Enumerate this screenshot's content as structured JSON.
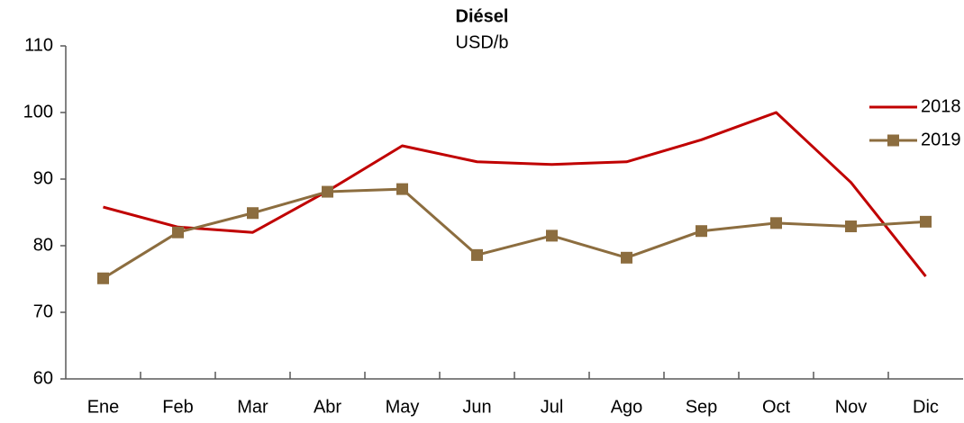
{
  "chart_data": {
    "type": "line",
    "title": "Diésel",
    "subtitle": "USD/b",
    "categories": [
      "Ene",
      "Feb",
      "Mar",
      "Abr",
      "May",
      "Jun",
      "Jul",
      "Ago",
      "Sep",
      "Oct",
      "Nov",
      "Dic"
    ],
    "series": [
      {
        "name": "2018",
        "color": "#c00000",
        "marker": "none",
        "values": [
          85.8,
          82.8,
          82.0,
          88.2,
          95.0,
          92.6,
          92.2,
          92.6,
          95.9,
          100.0,
          89.5,
          75.4
        ]
      },
      {
        "name": "2019",
        "color": "#8c6d3f",
        "marker": "square",
        "values": [
          75.1,
          82.0,
          84.9,
          88.1,
          88.5,
          78.6,
          81.5,
          78.2,
          82.2,
          83.4,
          82.9,
          83.6
        ]
      }
    ],
    "ylim": [
      60,
      110
    ],
    "yticks": [
      60,
      70,
      80,
      90,
      100,
      110
    ],
    "grid": false,
    "legend": "right"
  }
}
